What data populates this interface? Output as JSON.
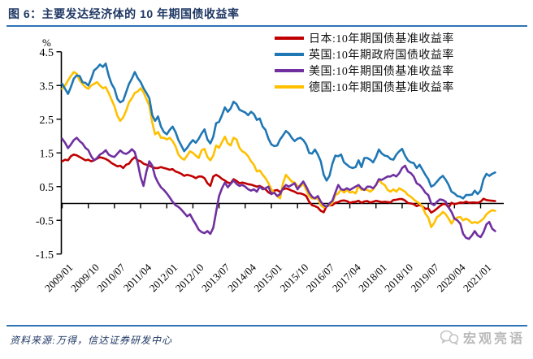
{
  "header": {
    "title": "图 6：主要发达经济体的 10 年期国债收益率"
  },
  "footer": {
    "source": "资料来源:万得，信达证券研发中心",
    "watermark": "宏观亮语"
  },
  "colors": {
    "title": "#1F3864",
    "divider": "#2E74B5",
    "axis": "#000000",
    "japan": "#C00000",
    "uk": "#1F77B4",
    "us": "#7030A0",
    "germany": "#FFC000",
    "watermark": "#b9b9b9"
  },
  "chart_data": {
    "type": "line",
    "title": "图 6：主要发达经济体的 10 年期国债收益率",
    "unit_label": "%",
    "x_range_months": [
      "2009/01",
      "2021/06"
    ],
    "x_tick_labels": [
      "2009/01",
      "2009/10",
      "2010/07",
      "2011/04",
      "2012/01",
      "2012/10",
      "2013/07",
      "2014/04",
      "2015/01",
      "2015/10",
      "2016/07",
      "2017/04",
      "2018/01",
      "2018/10",
      "2019/07",
      "2020/04",
      "2021/01"
    ],
    "x_tick_months": [
      0,
      9,
      18,
      27,
      36,
      45,
      54,
      63,
      72,
      81,
      90,
      99,
      108,
      117,
      126,
      135,
      144
    ],
    "y_tick_labels": [
      "4.5",
      "3.5",
      "2.5",
      "1.5",
      "0.5",
      "-0.5",
      "-1.5"
    ],
    "ylim": [
      -1.5,
      4.5
    ],
    "grid": false,
    "legend_position": "top-right",
    "series": [
      {
        "key": "japan",
        "name": "日本:10年期国债基准收益率",
        "color": "#C00000",
        "values": [
          1.25,
          1.3,
          1.28,
          1.4,
          1.45,
          1.43,
          1.38,
          1.33,
          1.28,
          1.3,
          1.25,
          1.28,
          1.33,
          1.37,
          1.35,
          1.32,
          1.27,
          1.2,
          1.15,
          1.1,
          1.12,
          1.05,
          1.15,
          1.18,
          1.3,
          1.37,
          1.28,
          1.25,
          1.18,
          1.15,
          1.12,
          1.08,
          1.05,
          1.05,
          1.08,
          1.05,
          1.03,
          1.0,
          1.02,
          0.95,
          0.92,
          0.88,
          0.82,
          0.85,
          0.83,
          0.8,
          0.75,
          0.8,
          0.8,
          0.75,
          0.6,
          0.52,
          0.8,
          0.85,
          0.8,
          0.73,
          0.68,
          0.62,
          0.6,
          0.72,
          0.67,
          0.6,
          0.62,
          0.6,
          0.57,
          0.56,
          0.53,
          0.5,
          0.52,
          0.47,
          0.42,
          0.33,
          0.28,
          0.38,
          0.4,
          0.34,
          0.42,
          0.45,
          0.42,
          0.38,
          0.35,
          0.3,
          0.3,
          0.27,
          0.22,
          0.05,
          -0.05,
          -0.08,
          -0.12,
          -0.22,
          -0.26,
          -0.07,
          -0.06,
          -0.05,
          0.02,
          0.04,
          0.08,
          0.09,
          0.07,
          0.02,
          0.04,
          0.05,
          0.08,
          0.02,
          0.06,
          0.07,
          0.03,
          0.05,
          0.08,
          0.06,
          0.04,
          0.05,
          0.04,
          0.03,
          0.1,
          0.11,
          0.13,
          0.13,
          0.09,
          0.01,
          0.0,
          -0.02,
          -0.08,
          -0.04,
          -0.09,
          -0.16,
          -0.15,
          -0.27,
          -0.22,
          -0.15,
          -0.08,
          -0.02,
          -0.02,
          -0.12,
          0.02,
          -0.02,
          0.0,
          0.03,
          0.02,
          0.05,
          0.02,
          0.03,
          0.03,
          0.02,
          0.05,
          0.14,
          0.1,
          0.09,
          0.08,
          0.07
        ]
      },
      {
        "key": "uk",
        "name": "英国:10年期政府国债收益率",
        "color": "#1F77B4",
        "values": [
          3.55,
          3.4,
          3.25,
          3.45,
          3.7,
          3.8,
          3.78,
          3.6,
          3.58,
          3.5,
          3.7,
          3.95,
          4.02,
          4.12,
          4.05,
          4.15,
          3.8,
          3.55,
          3.4,
          3.1,
          3.0,
          3.05,
          3.3,
          3.55,
          3.7,
          3.9,
          3.72,
          3.6,
          3.42,
          3.28,
          3.12,
          2.62,
          2.45,
          2.58,
          2.28,
          2.12,
          2.05,
          2.18,
          2.28,
          2.12,
          1.88,
          1.72,
          1.55,
          1.65,
          1.78,
          1.88,
          1.8,
          1.92,
          2.08,
          2.2,
          1.9,
          1.78,
          1.98,
          2.38,
          2.42,
          2.62,
          2.85,
          2.72,
          2.82,
          3.02,
          2.95,
          2.78,
          2.74,
          2.7,
          2.62,
          2.72,
          2.65,
          2.48,
          2.52,
          2.28,
          2.18,
          1.92,
          1.75,
          1.7,
          1.72,
          1.9,
          2.02,
          2.15,
          2.08,
          1.95,
          1.85,
          1.92,
          1.95,
          1.88,
          1.75,
          1.5,
          1.48,
          1.6,
          1.45,
          1.25,
          0.85,
          0.68,
          0.82,
          1.18,
          1.42,
          1.4,
          1.45,
          1.22,
          1.15,
          1.08,
          1.05,
          1.08,
          1.28,
          1.08,
          1.35,
          1.35,
          1.3,
          1.22,
          1.38,
          1.6,
          1.48,
          1.42,
          1.4,
          1.32,
          1.3,
          1.45,
          1.55,
          1.62,
          1.42,
          1.28,
          1.22,
          1.2,
          1.05,
          1.15,
          1.0,
          0.85,
          0.72,
          0.5,
          0.55,
          0.65,
          0.75,
          0.82,
          0.7,
          0.55,
          0.35,
          0.3,
          0.22,
          0.2,
          0.15,
          0.25,
          0.25,
          0.26,
          0.38,
          0.28,
          0.38,
          0.72,
          0.88,
          0.82,
          0.88,
          0.92
        ]
      },
      {
        "key": "us",
        "name": "美国:10年期国债基准收益率",
        "color": "#7030A0",
        "values": [
          1.92,
          1.8,
          1.64,
          1.75,
          1.88,
          1.95,
          1.85,
          1.78,
          1.65,
          1.58,
          1.4,
          1.28,
          1.35,
          1.45,
          1.5,
          1.58,
          1.45,
          1.4,
          1.38,
          1.48,
          1.57,
          1.5,
          1.47,
          1.52,
          1.61,
          1.52,
          1.2,
          0.78,
          0.52,
          0.95,
          1.25,
          1.12,
          0.8,
          0.62,
          0.48,
          0.4,
          0.3,
          0.18,
          0.05,
          -0.05,
          -0.1,
          -0.18,
          -0.28,
          -0.38,
          -0.32,
          -0.48,
          -0.62,
          -0.78,
          -0.85,
          -0.88,
          -0.82,
          -0.9,
          -0.72,
          -0.25,
          0.22,
          0.45,
          0.62,
          0.48,
          0.58,
          0.68,
          0.58,
          0.52,
          0.55,
          0.5,
          0.42,
          0.38,
          0.42,
          0.35,
          0.5,
          0.42,
          0.45,
          0.5,
          0.28,
          0.32,
          0.22,
          0.28,
          0.45,
          0.55,
          0.5,
          0.55,
          0.6,
          0.42,
          0.55,
          0.65,
          0.5,
          0.32,
          0.2,
          0.15,
          0.22,
          0.05,
          -0.05,
          -0.1,
          0.0,
          0.08,
          0.32,
          0.55,
          0.42,
          0.4,
          0.45,
          0.4,
          0.45,
          0.5,
          0.55,
          0.45,
          0.4,
          0.5,
          0.5,
          0.45,
          0.55,
          0.72,
          0.7,
          0.75,
          0.8,
          0.8,
          0.85,
          0.8,
          0.9,
          1.05,
          1.12,
          0.95,
          0.9,
          0.8,
          0.6,
          0.55,
          0.45,
          0.32,
          0.25,
          0.0,
          -0.05,
          0.05,
          0.12,
          0.1,
          0.05,
          -0.12,
          -0.25,
          -0.45,
          -0.5,
          -0.6,
          -0.9,
          -1.02,
          -1.05,
          -0.95,
          -0.82,
          -0.95,
          -1.0,
          -0.85,
          -0.62,
          -0.55,
          -0.75,
          -0.82
        ]
      },
      {
        "key": "germany",
        "name": "德国:10年期国债基准收益率",
        "color": "#FFC000",
        "values": [
          3.4,
          3.5,
          3.65,
          3.78,
          3.9,
          3.85,
          3.65,
          3.55,
          3.45,
          3.4,
          3.5,
          3.55,
          3.6,
          3.5,
          3.42,
          3.45,
          3.28,
          3.08,
          2.88,
          2.6,
          2.45,
          2.55,
          2.75,
          3.0,
          3.12,
          3.28,
          3.32,
          3.42,
          3.3,
          3.1,
          2.9,
          2.4,
          2.05,
          2.12,
          1.95,
          1.95,
          1.9,
          1.95,
          1.85,
          1.7,
          1.45,
          1.35,
          1.3,
          1.42,
          1.55,
          1.5,
          1.42,
          1.35,
          1.58,
          1.62,
          1.38,
          1.28,
          1.42,
          1.72,
          1.65,
          1.82,
          1.98,
          1.78,
          1.72,
          1.95,
          1.9,
          1.65,
          1.55,
          1.5,
          1.4,
          1.25,
          1.15,
          0.95,
          0.98,
          0.85,
          0.75,
          0.6,
          0.42,
          0.32,
          0.22,
          0.15,
          0.6,
          0.85,
          0.75,
          0.65,
          0.62,
          0.52,
          0.5,
          0.6,
          0.4,
          0.22,
          0.15,
          0.15,
          0.15,
          -0.05,
          -0.12,
          -0.07,
          -0.05,
          0.02,
          0.25,
          0.3,
          0.42,
          0.32,
          0.4,
          0.32,
          0.35,
          0.3,
          0.52,
          0.4,
          0.42,
          0.4,
          0.35,
          0.42,
          0.55,
          0.7,
          0.6,
          0.55,
          0.4,
          0.35,
          0.42,
          0.35,
          0.45,
          0.4,
          0.35,
          0.25,
          0.2,
          0.12,
          0.05,
          0.0,
          -0.1,
          -0.3,
          -0.42,
          -0.7,
          -0.58,
          -0.4,
          -0.35,
          -0.25,
          -0.32,
          -0.45,
          -0.6,
          -0.45,
          -0.42,
          -0.4,
          -0.5,
          -0.45,
          -0.5,
          -0.58,
          -0.55,
          -0.58,
          -0.52,
          -0.45,
          -0.32,
          -0.25,
          -0.2,
          -0.22
        ]
      }
    ],
    "draw_order": [
      0,
      3,
      1,
      2
    ]
  }
}
